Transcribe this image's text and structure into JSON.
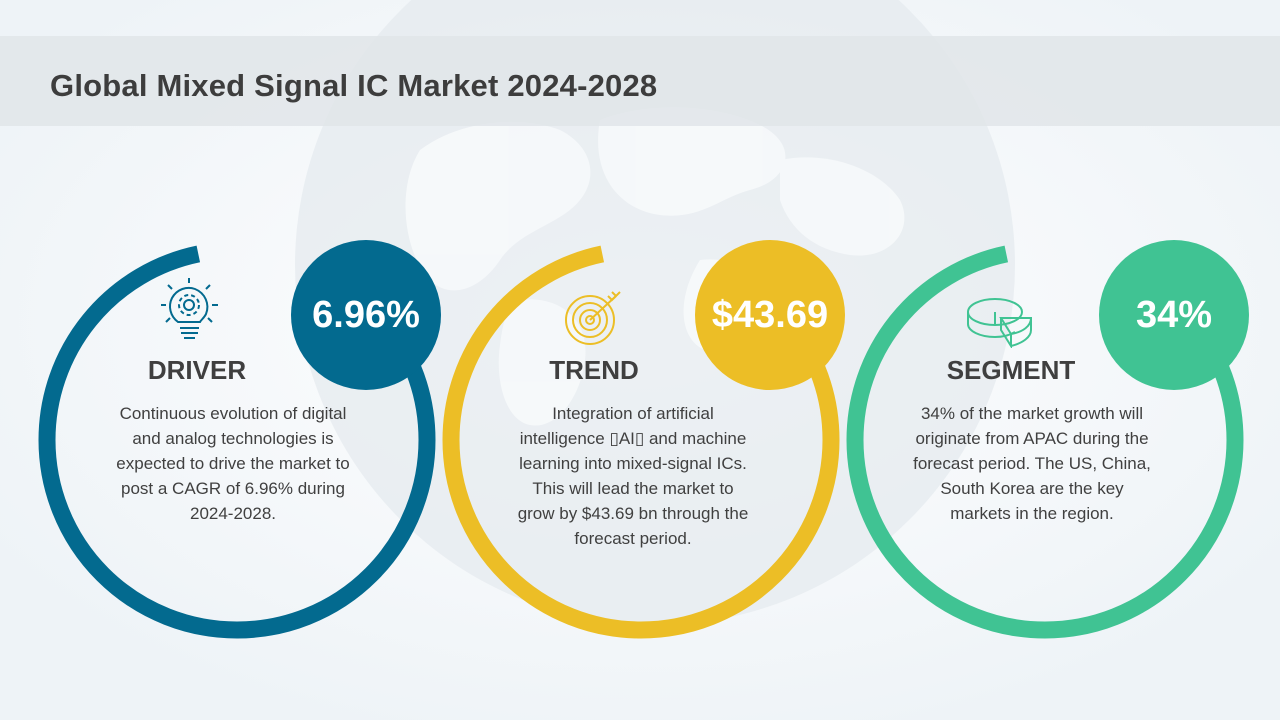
{
  "title": "Global Mixed Signal IC Market 2024-2028",
  "colors": {
    "driver": "#036a8f",
    "trend": "#ecbe26",
    "segment": "#40c393",
    "title_band": "#e1e5e9"
  },
  "cards": [
    {
      "heading": "DRIVER",
      "value": "6.96%",
      "icon": "lightbulb-gear-icon",
      "text": "Continuous evolution of digital and analog technologies is expected to drive the market to post a CAGR of 6.96% during 2024-2028."
    },
    {
      "heading": "TREND",
      "value": "$43.69",
      "icon": "target-arrow-icon",
      "text": "Integration of artificial intelligence ▯AI▯ and machine learning into mixed-signal ICs. This will lead the market to grow by $43.69 bn through the forecast period."
    },
    {
      "heading": "SEGMENT",
      "value": "34%",
      "icon": "pie-chart-icon",
      "text": "34% of the market growth will originate from APAC during the forecast period. The US, China, South Korea are the key markets in the region."
    }
  ]
}
